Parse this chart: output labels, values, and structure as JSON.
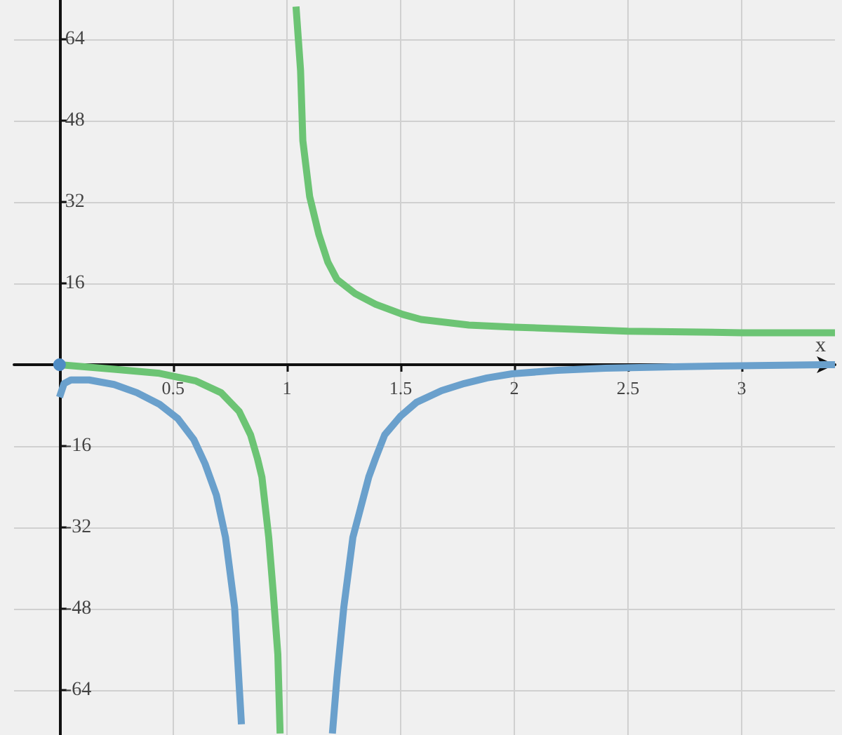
{
  "chart_data": {
    "type": "line",
    "xlabel": "x",
    "xlim": [
      -0.2,
      3.41
    ],
    "ylim": [
      -72.9,
      71.8
    ],
    "xticks": [
      0.5,
      1,
      1.5,
      2,
      2.5,
      3
    ],
    "yticks": [
      -64,
      -48,
      -32,
      -16,
      16,
      32,
      48,
      64
    ],
    "grid": true,
    "marker": "none",
    "line_style": "solid",
    "series": [
      {
        "color": "#6aa0cc",
        "x": [
          0.0,
          0.02,
          0.05,
          0.13,
          0.24,
          0.34,
          0.44,
          0.52,
          0.59,
          0.64,
          0.69,
          0.73,
          0.77,
          0.8,
          1.0,
          1.2,
          1.22,
          1.25,
          1.29,
          1.36,
          1.39,
          1.43,
          1.5,
          1.57,
          1.68,
          1.78,
          1.88,
          1.99,
          2.19,
          2.4,
          2.7,
          3.0,
          3.36,
          3.41
        ],
        "values": [
          -6.4,
          -3.7,
          -3.0,
          -3.0,
          -3.9,
          -5.5,
          -7.8,
          -10.6,
          -14.7,
          -19.5,
          -25.7,
          -34.0,
          -47.8,
          -70.8,
          null,
          -72.6,
          -61.6,
          -47.8,
          -34.0,
          -22.1,
          -18.4,
          -13.8,
          -10.1,
          -7.4,
          -5.1,
          -3.7,
          -2.6,
          -1.8,
          -1.1,
          -0.7,
          -0.4,
          -0.2,
          0.0,
          0.0
        ]
      },
      {
        "color": "#6cc474",
        "x": [
          0.0,
          0.24,
          0.44,
          0.6,
          0.71,
          0.79,
          0.84,
          0.87,
          0.89,
          0.92,
          0.94,
          0.96,
          0.97,
          1.0,
          1.04,
          1.06,
          1.07,
          1.1,
          1.14,
          1.18,
          1.22,
          1.3,
          1.39,
          1.51,
          1.59,
          1.8,
          2.0,
          2.5,
          3.0,
          3.41
        ],
        "values": [
          0.0,
          -0.9,
          -1.7,
          -3.2,
          -5.5,
          -9.2,
          -13.8,
          -18.4,
          -22.1,
          -34.0,
          -45.0,
          -57.0,
          -72.6,
          null,
          70.5,
          57.9,
          44.1,
          33.1,
          25.7,
          20.2,
          16.8,
          14.0,
          11.9,
          9.9,
          8.9,
          7.8,
          7.4,
          6.6,
          6.3,
          6.3
        ]
      },
      {
        "type": "scatter",
        "marker": "circle",
        "color": "#4f8cc4",
        "x": [
          0
        ],
        "values": [
          0
        ]
      }
    ]
  }
}
